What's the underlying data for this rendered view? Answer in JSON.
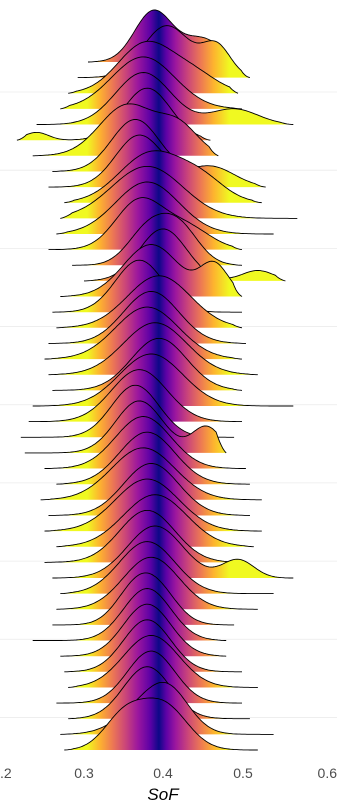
{
  "chart_data": {
    "type": "ridgeline",
    "xlabel": "SoF",
    "ylabel": "",
    "xlim": [
      0.2,
      0.6
    ],
    "x_ticks": [
      0.2,
      0.3,
      0.4,
      0.5,
      0.6
    ],
    "x_tick_labels": [
      ".2",
      "0.3",
      "0.4",
      "0.5",
      "0.6"
    ],
    "grid": "horizontal-only",
    "legend": "none",
    "fill": "gradient by x (plasma: yellow tails to indigo at the median)",
    "colors": {
      "outline": "#000000",
      "gradient": [
        "#f0f921",
        "#fdb32f",
        "#ed7953",
        "#cc4778",
        "#9c179e",
        "#5c01a6",
        "#0d0887"
      ],
      "median": "#0d0887",
      "grid": "#ebebeb",
      "tick_label": "#4d4d4d"
    },
    "series": [
      {
        "min": 0.305,
        "max": 0.485,
        "peaks": [
          [
            0.388,
            1.0,
            0.024
          ],
          [
            0.45,
            0.45,
            0.025
          ]
        ]
      },
      {
        "min": 0.292,
        "max": 0.51,
        "peaks": [
          [
            0.405,
            0.95,
            0.03
          ],
          [
            0.468,
            0.55,
            0.018
          ]
        ]
      },
      {
        "min": 0.28,
        "max": 0.495,
        "peaks": [
          [
            0.378,
            1.0,
            0.035
          ],
          [
            0.44,
            0.35,
            0.03
          ]
        ]
      },
      {
        "min": 0.27,
        "max": 0.5,
        "peaks": [
          [
            0.375,
            1.0,
            0.04
          ]
        ]
      },
      {
        "min": 0.24,
        "max": 0.565,
        "peaks": [
          [
            0.375,
            1.0,
            0.035
          ],
          [
            0.49,
            0.3,
            0.03
          ]
        ]
      },
      {
        "min": 0.215,
        "max": 0.46,
        "peaks": [
          [
            0.24,
            0.15,
            0.015
          ],
          [
            0.38,
            1.0,
            0.03
          ]
        ]
      },
      {
        "min": 0.235,
        "max": 0.47,
        "peaks": [
          [
            0.355,
            1.0,
            0.035
          ],
          [
            0.42,
            0.55,
            0.025
          ]
        ]
      },
      {
        "min": 0.26,
        "max": 0.46,
        "peaks": [
          [
            0.365,
            1.0,
            0.03
          ]
        ]
      },
      {
        "min": 0.255,
        "max": 0.53,
        "peaks": [
          [
            0.37,
            1.0,
            0.03
          ],
          [
            0.46,
            0.4,
            0.03
          ]
        ]
      },
      {
        "min": 0.275,
        "max": 0.525,
        "peaks": [
          [
            0.385,
            1.0,
            0.04
          ],
          [
            0.45,
            0.4,
            0.03
          ]
        ]
      },
      {
        "min": 0.27,
        "max": 0.57,
        "peaks": [
          [
            0.38,
            1.0,
            0.045
          ]
        ]
      },
      {
        "min": 0.265,
        "max": 0.54,
        "peaks": [
          [
            0.38,
            1.0,
            0.04
          ]
        ]
      },
      {
        "min": 0.255,
        "max": 0.5,
        "peaks": [
          [
            0.37,
            1.0,
            0.03
          ],
          [
            0.43,
            0.45,
            0.03
          ]
        ]
      },
      {
        "min": 0.285,
        "max": 0.5,
        "peaks": [
          [
            0.38,
            0.9,
            0.025
          ],
          [
            0.42,
            1.0,
            0.025
          ]
        ]
      },
      {
        "min": 0.3,
        "max": 0.555,
        "peaks": [
          [
            0.4,
            1.0,
            0.03
          ],
          [
            0.52,
            0.2,
            0.02
          ]
        ]
      },
      {
        "min": 0.27,
        "max": 0.5,
        "peaks": [
          [
            0.385,
            1.0,
            0.035
          ],
          [
            0.465,
            0.6,
            0.018
          ]
        ]
      },
      {
        "min": 0.26,
        "max": 0.5,
        "peaks": [
          [
            0.37,
            1.0,
            0.03
          ]
        ]
      },
      {
        "min": 0.265,
        "max": 0.5,
        "peaks": [
          [
            0.395,
            1.0,
            0.04
          ]
        ]
      },
      {
        "min": 0.255,
        "max": 0.505,
        "peaks": [
          [
            0.385,
            1.0,
            0.035
          ]
        ]
      },
      {
        "min": 0.25,
        "max": 0.5,
        "peaks": [
          [
            0.38,
            1.0,
            0.04
          ]
        ]
      },
      {
        "min": 0.255,
        "max": 0.52,
        "peaks": [
          [
            0.39,
            1.0,
            0.04
          ]
        ]
      },
      {
        "min": 0.26,
        "max": 0.5,
        "peaks": [
          [
            0.395,
            1.0,
            0.035
          ]
        ]
      },
      {
        "min": 0.235,
        "max": 0.565,
        "peaks": [
          [
            0.385,
            1.0,
            0.04
          ]
        ]
      },
      {
        "min": 0.23,
        "max": 0.5,
        "peaks": [
          [
            0.37,
            1.0,
            0.035
          ]
        ]
      },
      {
        "min": 0.22,
        "max": 0.49,
        "peaks": [
          [
            0.365,
            1.0,
            0.03
          ]
        ]
      },
      {
        "min": 0.225,
        "max": 0.48,
        "peaks": [
          [
            0.37,
            1.0,
            0.03
          ],
          [
            0.455,
            0.5,
            0.018
          ]
        ]
      },
      {
        "min": 0.25,
        "max": 0.505,
        "peaks": [
          [
            0.375,
            1.0,
            0.035
          ]
        ]
      },
      {
        "min": 0.265,
        "max": 0.51,
        "peaks": [
          [
            0.38,
            1.0,
            0.035
          ]
        ]
      },
      {
        "min": 0.245,
        "max": 0.525,
        "peaks": [
          [
            0.375,
            1.0,
            0.04
          ]
        ]
      },
      {
        "min": 0.255,
        "max": 0.51,
        "peaks": [
          [
            0.385,
            1.0,
            0.035
          ]
        ]
      },
      {
        "min": 0.25,
        "max": 0.525,
        "peaks": [
          [
            0.38,
            1.0,
            0.04
          ]
        ]
      },
      {
        "min": 0.265,
        "max": 0.515,
        "peaks": [
          [
            0.39,
            1.0,
            0.04
          ]
        ]
      },
      {
        "min": 0.25,
        "max": 0.5,
        "peaks": [
          [
            0.38,
            1.0,
            0.035
          ]
        ]
      },
      {
        "min": 0.26,
        "max": 0.565,
        "peaks": [
          [
            0.39,
            1.0,
            0.035
          ],
          [
            0.495,
            0.35,
            0.02
          ]
        ]
      },
      {
        "min": 0.27,
        "max": 0.54,
        "peaks": [
          [
            0.38,
            1.0,
            0.035
          ]
        ]
      },
      {
        "min": 0.265,
        "max": 0.52,
        "peaks": [
          [
            0.385,
            1.0,
            0.035
          ]
        ]
      },
      {
        "min": 0.26,
        "max": 0.49,
        "peaks": [
          [
            0.365,
            1.0,
            0.025
          ],
          [
            0.395,
            0.85,
            0.025
          ]
        ]
      },
      {
        "min": 0.235,
        "max": 0.48,
        "peaks": [
          [
            0.38,
            1.0,
            0.03
          ]
        ]
      },
      {
        "min": 0.27,
        "max": 0.48,
        "peaks": [
          [
            0.38,
            1.0,
            0.03
          ]
        ]
      },
      {
        "min": 0.275,
        "max": 0.5,
        "peaks": [
          [
            0.38,
            1.0,
            0.03
          ]
        ]
      },
      {
        "min": 0.28,
        "max": 0.52,
        "peaks": [
          [
            0.385,
            1.0,
            0.035
          ]
        ]
      },
      {
        "min": 0.265,
        "max": 0.5,
        "peaks": [
          [
            0.385,
            1.0,
            0.03
          ]
        ]
      },
      {
        "min": 0.28,
        "max": 0.51,
        "peaks": [
          [
            0.38,
            1.0,
            0.03
          ]
        ]
      },
      {
        "min": 0.27,
        "max": 0.54,
        "peaks": [
          [
            0.385,
            1.0,
            0.035
          ],
          [
            0.41,
            0.7,
            0.025
          ]
        ]
      },
      {
        "min": 0.275,
        "max": 0.52,
        "peaks": [
          [
            0.35,
            0.7,
            0.025
          ],
          [
            0.4,
            1.0,
            0.03
          ]
        ]
      }
    ]
  }
}
